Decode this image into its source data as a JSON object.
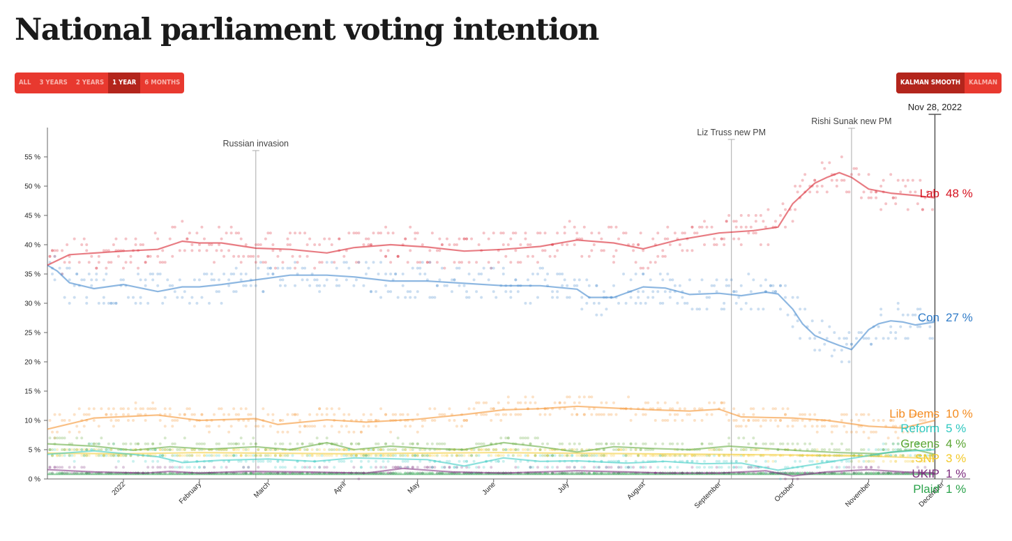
{
  "page": {
    "title": "National parliament voting intention"
  },
  "controls": {
    "range": [
      {
        "label": "ALL",
        "active": false
      },
      {
        "label": "3 YEARS",
        "active": false
      },
      {
        "label": "2 YEARS",
        "active": false
      },
      {
        "label": "1 YEAR",
        "active": true
      },
      {
        "label": "6 MONTHS",
        "active": false
      }
    ],
    "smoothing": [
      {
        "label": "KALMAN SMOOTH",
        "active": true
      },
      {
        "label": "KALMAN",
        "active": false
      }
    ]
  },
  "chart_data": {
    "type": "line",
    "title": "",
    "xlabel": "",
    "ylabel": "",
    "x_range": [
      "2021-12-01",
      "2022-12-01"
    ],
    "ylim": [
      0,
      60
    ],
    "y_ticks": [
      0,
      5,
      10,
      15,
      20,
      25,
      30,
      35,
      40,
      45,
      50,
      55
    ],
    "y_tick_suffix": " %",
    "x_ticks": [
      {
        "date": "2022-01-01",
        "label": "2022"
      },
      {
        "date": "2022-02-01",
        "label": "February"
      },
      {
        "date": "2022-03-01",
        "label": "March"
      },
      {
        "date": "2022-04-01",
        "label": "April"
      },
      {
        "date": "2022-05-01",
        "label": "May"
      },
      {
        "date": "2022-06-01",
        "label": "June"
      },
      {
        "date": "2022-07-01",
        "label": "July"
      },
      {
        "date": "2022-08-01",
        "label": "August"
      },
      {
        "date": "2022-09-01",
        "label": "September"
      },
      {
        "date": "2022-10-01",
        "label": "October"
      },
      {
        "date": "2022-11-01",
        "label": "November"
      },
      {
        "date": "2022-12-01",
        "label": "December"
      }
    ],
    "events": [
      {
        "date": "2022-02-24",
        "label": "Russian invasion"
      },
      {
        "date": "2022-09-06",
        "label": "Liz Truss new PM"
      },
      {
        "date": "2022-10-25",
        "label": "Rishi Sunak new PM"
      }
    ],
    "current_date": {
      "date": "2022-11-28",
      "label": "Nov 28, 2022"
    },
    "series": [
      {
        "name": "Lab",
        "value_label": "48 %",
        "color": "#d6111e",
        "x": [
          "2021-12-01",
          "2021-12-10",
          "2022-01-01",
          "2022-01-15",
          "2022-01-25",
          "2022-02-01",
          "2022-02-10",
          "2022-02-24",
          "2022-03-10",
          "2022-03-25",
          "2022-04-05",
          "2022-04-20",
          "2022-05-05",
          "2022-05-20",
          "2022-06-05",
          "2022-06-20",
          "2022-07-05",
          "2022-07-20",
          "2022-08-01",
          "2022-08-15",
          "2022-09-01",
          "2022-09-15",
          "2022-09-25",
          "2022-10-01",
          "2022-10-10",
          "2022-10-15",
          "2022-10-20",
          "2022-10-25",
          "2022-11-01",
          "2022-11-10",
          "2022-11-20",
          "2022-11-28"
        ],
        "y": [
          36.5,
          38.3,
          38.9,
          39.2,
          40.6,
          40.3,
          40.3,
          39.4,
          39.2,
          38.6,
          39.5,
          40.0,
          39.6,
          38.9,
          39.2,
          39.7,
          40.8,
          40.3,
          39.3,
          40.8,
          42.0,
          42.4,
          43.0,
          47.0,
          50.5,
          51.5,
          52.3,
          51.5,
          49.5,
          48.8,
          48.4,
          48.0
        ]
      },
      {
        "name": "Con",
        "value_label": "27 %",
        "color": "#2f7bc8",
        "x": [
          "2021-12-01",
          "2021-12-05",
          "2021-12-10",
          "2021-12-20",
          "2022-01-01",
          "2022-01-15",
          "2022-01-25",
          "2022-02-01",
          "2022-02-10",
          "2022-02-24",
          "2022-03-10",
          "2022-03-25",
          "2022-04-05",
          "2022-04-20",
          "2022-05-05",
          "2022-05-20",
          "2022-06-05",
          "2022-06-20",
          "2022-07-05",
          "2022-07-10",
          "2022-07-20",
          "2022-08-01",
          "2022-08-10",
          "2022-08-20",
          "2022-09-01",
          "2022-09-10",
          "2022-09-20",
          "2022-09-25",
          "2022-10-01",
          "2022-10-05",
          "2022-10-10",
          "2022-10-15",
          "2022-10-20",
          "2022-10-25",
          "2022-11-01",
          "2022-11-05",
          "2022-11-10",
          "2022-11-15",
          "2022-11-20",
          "2022-11-28"
        ],
        "y": [
          36.5,
          35.5,
          33.5,
          32.5,
          33.2,
          32.0,
          32.8,
          32.8,
          33.2,
          34.0,
          34.8,
          34.8,
          34.5,
          33.8,
          33.8,
          33.4,
          33.0,
          33.0,
          32.4,
          31.0,
          31.0,
          32.8,
          32.6,
          31.5,
          31.7,
          31.3,
          31.9,
          31.6,
          29.0,
          26.5,
          24.5,
          23.6,
          22.8,
          22.1,
          25.5,
          26.5,
          27.0,
          26.8,
          26.3,
          26.8
        ]
      },
      {
        "name": "Lib Dems",
        "value_label": "10 %",
        "color": "#f48b1f",
        "x": [
          "2021-12-01",
          "2021-12-20",
          "2022-01-15",
          "2022-02-01",
          "2022-02-24",
          "2022-03-05",
          "2022-03-25",
          "2022-04-10",
          "2022-05-01",
          "2022-05-20",
          "2022-06-05",
          "2022-06-20",
          "2022-07-05",
          "2022-07-20",
          "2022-08-05",
          "2022-08-20",
          "2022-09-01",
          "2022-09-10",
          "2022-09-20",
          "2022-10-01",
          "2022-10-15",
          "2022-11-01",
          "2022-11-15",
          "2022-11-28"
        ],
        "y": [
          8.5,
          10.4,
          10.9,
          10.0,
          10.3,
          9.3,
          10.1,
          9.7,
          10.2,
          11.0,
          11.8,
          12.0,
          12.4,
          12.1,
          11.8,
          11.6,
          11.9,
          10.6,
          10.5,
          10.4,
          10.0,
          9.0,
          8.7,
          10.0
        ]
      },
      {
        "name": "Reform",
        "value_label": "5 %",
        "color": "#2ec8c0",
        "x": [
          "2021-12-01",
          "2021-12-20",
          "2022-01-15",
          "2022-01-25",
          "2022-02-10",
          "2022-03-01",
          "2022-03-20",
          "2022-04-05",
          "2022-05-05",
          "2022-05-20",
          "2022-06-05",
          "2022-06-20",
          "2022-07-05",
          "2022-07-25",
          "2022-08-10",
          "2022-08-25",
          "2022-09-10",
          "2022-09-25",
          "2022-10-10",
          "2022-10-25",
          "2022-11-10",
          "2022-11-28"
        ],
        "y": [
          4.2,
          4.8,
          3.8,
          2.8,
          3.2,
          3.4,
          3.0,
          3.6,
          3.3,
          2.2,
          3.6,
          3.0,
          3.1,
          2.7,
          3.0,
          2.6,
          2.7,
          1.5,
          2.5,
          3.5,
          4.6,
          5.0
        ]
      },
      {
        "name": "Greens",
        "value_label": "4 %",
        "color": "#5aa531",
        "x": [
          "2021-12-01",
          "2021-12-20",
          "2022-01-05",
          "2022-01-20",
          "2022-02-05",
          "2022-02-24",
          "2022-03-10",
          "2022-03-25",
          "2022-04-05",
          "2022-04-20",
          "2022-05-05",
          "2022-05-20",
          "2022-06-05",
          "2022-06-20",
          "2022-07-05",
          "2022-07-20",
          "2022-08-05",
          "2022-08-20",
          "2022-09-05",
          "2022-09-20",
          "2022-10-05",
          "2022-10-20",
          "2022-11-05",
          "2022-11-20",
          "2022-11-28"
        ],
        "y": [
          6.0,
          5.6,
          4.9,
          5.5,
          5.1,
          5.5,
          5.0,
          6.2,
          5.0,
          5.6,
          5.2,
          5.0,
          6.2,
          5.5,
          4.6,
          5.5,
          5.2,
          5.0,
          5.6,
          5.2,
          4.8,
          4.5,
          4.3,
          5.0,
          4.2
        ]
      },
      {
        "name": "SNP",
        "value_label": "3 %",
        "color": "#f3c928",
        "x": [
          "2021-12-01",
          "2022-01-01",
          "2022-02-01",
          "2022-03-01",
          "2022-04-01",
          "2022-05-01",
          "2022-06-01",
          "2022-07-01",
          "2022-08-01",
          "2022-09-01",
          "2022-10-01",
          "2022-11-01",
          "2022-11-28"
        ],
        "y": [
          4.4,
          4.3,
          4.5,
          4.4,
          4.3,
          4.4,
          4.5,
          4.4,
          4.3,
          4.2,
          4.1,
          3.9,
          3.5
        ]
      },
      {
        "name": "UKIP",
        "value_label": "1 %",
        "color": "#7b2b7d",
        "x": [
          "2021-12-01",
          "2021-12-20",
          "2022-01-10",
          "2022-01-20",
          "2022-02-01",
          "2022-02-20",
          "2022-03-15",
          "2022-04-10",
          "2022-04-25",
          "2022-05-15",
          "2022-06-05",
          "2022-07-05",
          "2022-07-25",
          "2022-08-10",
          "2022-09-01",
          "2022-09-20",
          "2022-10-01",
          "2022-10-15",
          "2022-11-01",
          "2022-11-15",
          "2022-11-28"
        ],
        "y": [
          1.6,
          1.2,
          1.0,
          1.3,
          1.0,
          1.3,
          1.2,
          1.0,
          1.8,
          1.2,
          1.0,
          1.4,
          1.2,
          1.0,
          1.0,
          1.4,
          0.5,
          1.2,
          1.6,
          1.2,
          1.0
        ]
      },
      {
        "name": "Plaid",
        "value_label": "1 %",
        "color": "#2aa24a",
        "x": [
          "2021-12-01",
          "2022-03-01",
          "2022-06-01",
          "2022-09-01",
          "2022-11-28"
        ],
        "y": [
          0.8,
          0.8,
          0.8,
          0.8,
          0.8
        ]
      }
    ]
  }
}
